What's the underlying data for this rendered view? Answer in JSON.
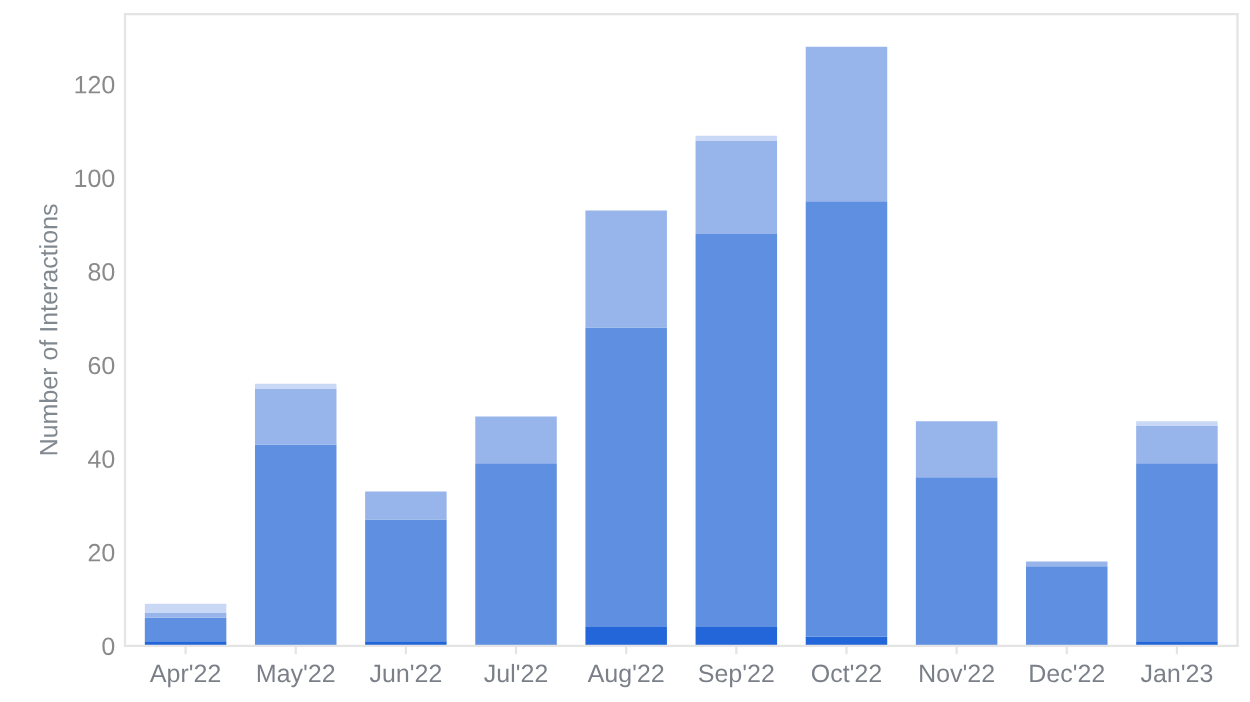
{
  "chart_data": {
    "type": "bar",
    "stacked": true,
    "ylabel": "Number of Interactions",
    "categories": [
      "Apr'22",
      "May'22",
      "Jun'22",
      "Jul'22",
      "Aug'22",
      "Sep'22",
      "Oct'22",
      "Nov'22",
      "Dec'22",
      "Jan'23"
    ],
    "series": [
      {
        "color": "#2366d9",
        "values": [
          1,
          0,
          1,
          0,
          4,
          4,
          2,
          0,
          0,
          1
        ]
      },
      {
        "color": "#5f8fe0",
        "values": [
          5,
          43,
          26,
          39,
          64,
          84,
          93,
          36,
          17,
          38
        ]
      },
      {
        "color": "#97b4eb",
        "values": [
          1,
          12,
          6,
          10,
          25,
          20,
          33,
          12,
          1,
          8
        ]
      },
      {
        "color": "#c9d8f5",
        "values": [
          2,
          1,
          0,
          0,
          0,
          1,
          0,
          0,
          0,
          1
        ]
      }
    ],
    "ylim": [
      0,
      135
    ],
    "yticks": [
      0,
      20,
      40,
      60,
      80,
      100,
      120
    ],
    "grid": false
  }
}
